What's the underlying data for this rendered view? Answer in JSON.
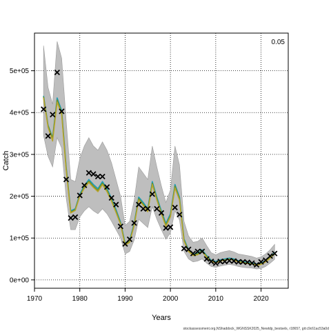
{
  "chart_data": {
    "type": "line",
    "xlabel": "Years",
    "ylabel": "Catch",
    "corner_label": "0.05",
    "footer_note": "stockassessment.org,NShaddock_WGNSSK2025_Newtdp_bestsels, r18657, git:c9c61ac53a0d",
    "xlim": [
      1970,
      2026
    ],
    "ylim": [
      -20000,
      590000
    ],
    "x_ticks": [
      1970,
      1980,
      1990,
      2000,
      2010,
      2020
    ],
    "y_ticks": [
      0,
      100000,
      200000,
      300000,
      400000,
      500000
    ],
    "y_tick_labels": [
      "0e+00",
      "1e+05",
      "2e+05",
      "3e+05",
      "4e+05",
      "5e+05"
    ],
    "grid": true,
    "colors": {
      "band": "#bebebe",
      "line_a": "#1a9bb5",
      "line_b": "#6b8e23",
      "line_c": "#b8a42c",
      "observed": "#000000"
    },
    "years": [
      1972,
      1973,
      1974,
      1975,
      1976,
      1977,
      1978,
      1979,
      1980,
      1981,
      1982,
      1983,
      1984,
      1985,
      1986,
      1987,
      1988,
      1989,
      1990,
      1991,
      1992,
      1993,
      1994,
      1995,
      1996,
      1997,
      1998,
      1999,
      2000,
      2001,
      2002,
      2003,
      2004,
      2005,
      2006,
      2007,
      2008,
      2009,
      2010,
      2011,
      2012,
      2013,
      2014,
      2015,
      2016,
      2017,
      2018,
      2019,
      2020,
      2021,
      2022,
      2023
    ],
    "series": [
      {
        "values": [
          440000,
          370000,
          340000,
          435000,
          405000,
          270000,
          165000,
          170000,
          205000,
          225000,
          240000,
          228000,
          218000,
          235000,
          218000,
          195000,
          168000,
          138000,
          88000,
          95000,
          135000,
          198000,
          185000,
          170000,
          235000,
          198000,
          165000,
          135000,
          158000,
          228000,
          198000,
          98000,
          72000,
          62000,
          64000,
          72000,
          58000,
          47000,
          44000,
          48000,
          50000,
          52000,
          50000,
          46000,
          44000,
          42000,
          41000,
          38000,
          40000,
          46000,
          55000,
          66000
        ]
      },
      {
        "values": [
          438000,
          368000,
          338000,
          430000,
          400000,
          266000,
          162000,
          168000,
          202000,
          222000,
          236000,
          224000,
          214000,
          231000,
          214000,
          191000,
          164000,
          135000,
          85000,
          92000,
          132000,
          194000,
          181000,
          166000,
          231000,
          194000,
          161000,
          131000,
          154000,
          224000,
          194000,
          95000,
          70000,
          60000,
          62000,
          70000,
          56000,
          45000,
          42000,
          46000,
          48000,
          50000,
          48000,
          44000,
          42000,
          40000,
          39000,
          36000,
          38000,
          44000,
          53000,
          64000
        ]
      },
      {
        "values": [
          435000,
          365000,
          332000,
          425000,
          396000,
          262000,
          160000,
          166000,
          200000,
          219000,
          233000,
          221000,
          211000,
          228000,
          211000,
          188000,
          161000,
          133000,
          83000,
          90000,
          130000,
          191000,
          178000,
          163000,
          228000,
          191000,
          158000,
          128000,
          151000,
          220000,
          191000,
          93000,
          68000,
          58000,
          60000,
          68000,
          54000,
          44000,
          41000,
          45000,
          47000,
          49000,
          47000,
          43000,
          41000,
          39000,
          38000,
          35000,
          37000,
          43000,
          52000,
          62000
        ]
      }
    ],
    "band_upper": [
      560000,
      460000,
      420000,
      570000,
      530000,
      380000,
      240000,
      235000,
      290000,
      320000,
      340000,
      320000,
      310000,
      330000,
      310000,
      280000,
      240000,
      200000,
      130000,
      140000,
      190000,
      270000,
      255000,
      240000,
      320000,
      270000,
      225000,
      185000,
      215000,
      320000,
      275000,
      140000,
      105000,
      90000,
      92000,
      100000,
      82000,
      65000,
      60000,
      65000,
      68000,
      70000,
      67000,
      62000,
      60000,
      58000,
      56000,
      52000,
      55000,
      62000,
      72000,
      85000
    ],
    "band_lower": [
      345000,
      295000,
      270000,
      340000,
      315000,
      195000,
      120000,
      120000,
      150000,
      165000,
      175000,
      165000,
      158000,
      170000,
      158000,
      140000,
      120000,
      100000,
      62000,
      68000,
      95000,
      145000,
      135000,
      125000,
      175000,
      145000,
      120000,
      97000,
      112000,
      165000,
      143000,
      68000,
      50000,
      43000,
      45000,
      50000,
      40000,
      32000,
      30000,
      33000,
      35000,
      37000,
      35000,
      32000,
      30000,
      29000,
      28000,
      26000,
      27000,
      32000,
      40000,
      49000
    ],
    "observed": [
      408000,
      344000,
      395000,
      496000,
      403000,
      240000,
      148000,
      150000,
      202000,
      226000,
      256000,
      253000,
      247000,
      247000,
      222000,
      196000,
      180000,
      128000,
      86000,
      97000,
      136000,
      180000,
      170000,
      170000,
      205000,
      170000,
      160000,
      124000,
      126000,
      173000,
      156000,
      75000,
      73000,
      63000,
      68000,
      68000,
      50000,
      44000,
      40000,
      44000,
      44000,
      46000,
      45000,
      43000,
      43000,
      42000,
      40000,
      36000,
      43000,
      47000,
      57000,
      63000
    ]
  }
}
